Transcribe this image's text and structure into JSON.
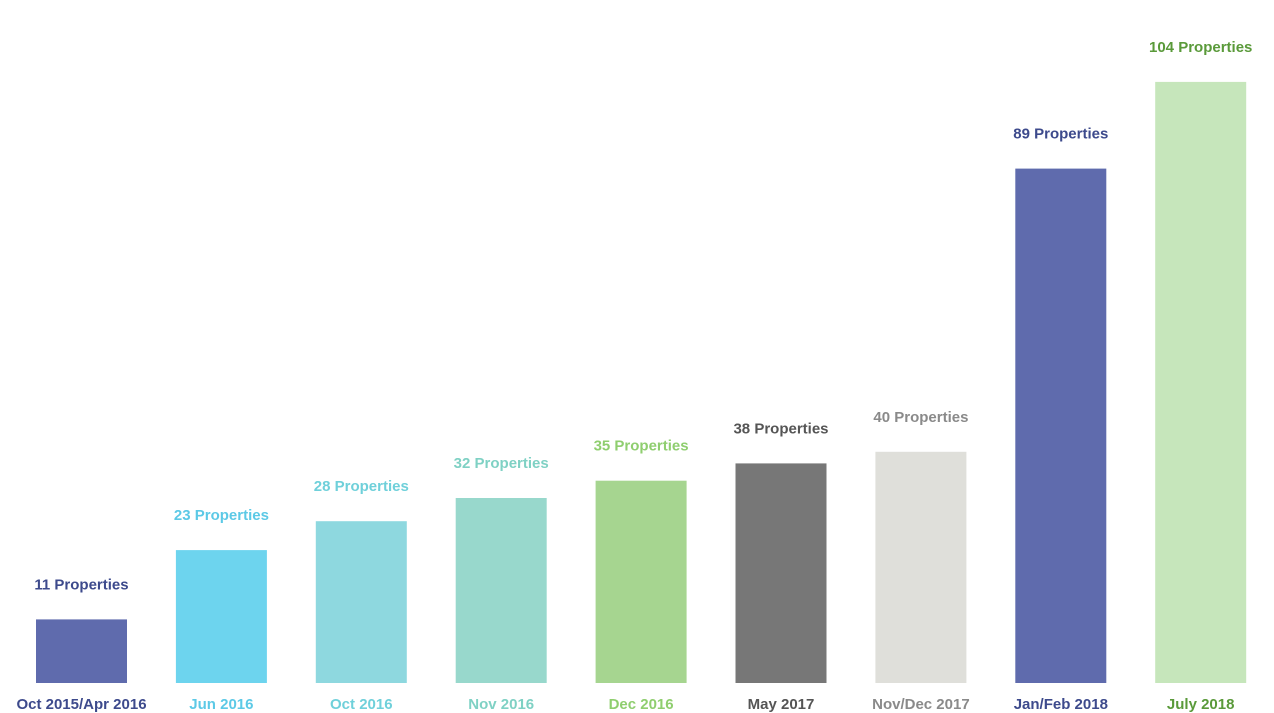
{
  "chart_data": {
    "type": "bar",
    "title": "",
    "xlabel": "",
    "ylabel": "",
    "ylim": [
      0,
      110
    ],
    "grid": false,
    "legend": "none",
    "categories": [
      "Oct 2015/Apr 2016",
      "Jun 2016",
      "Oct 2016",
      "Nov 2016",
      "Dec 2016",
      "May 2017",
      "Nov/Dec 2017",
      "Jan/Feb 2018",
      "July 2018"
    ],
    "values": [
      11,
      23,
      28,
      32,
      35,
      38,
      40,
      89,
      104
    ],
    "data_labels": [
      "11 Properties",
      "23 Properties",
      "28 Properties",
      "32 Properties",
      "35 Properties",
      "38 Properties",
      "40 Properties",
      "89 Properties",
      "104 Properties"
    ],
    "bar_colors": [
      "#5f6bad",
      "#6dd4ee",
      "#8ed8df",
      "#98d8cc",
      "#a6d590",
      "#777777",
      "#dfdfda",
      "#5f6bad",
      "#c6e6bb"
    ],
    "label_colors": [
      "#3d4a8c",
      "#5cc9e6",
      "#6fd0da",
      "#7fd1c4",
      "#8fce6f",
      "#555555",
      "#8a8a8a",
      "#3d4a8c",
      "#5a9a3a"
    ]
  }
}
